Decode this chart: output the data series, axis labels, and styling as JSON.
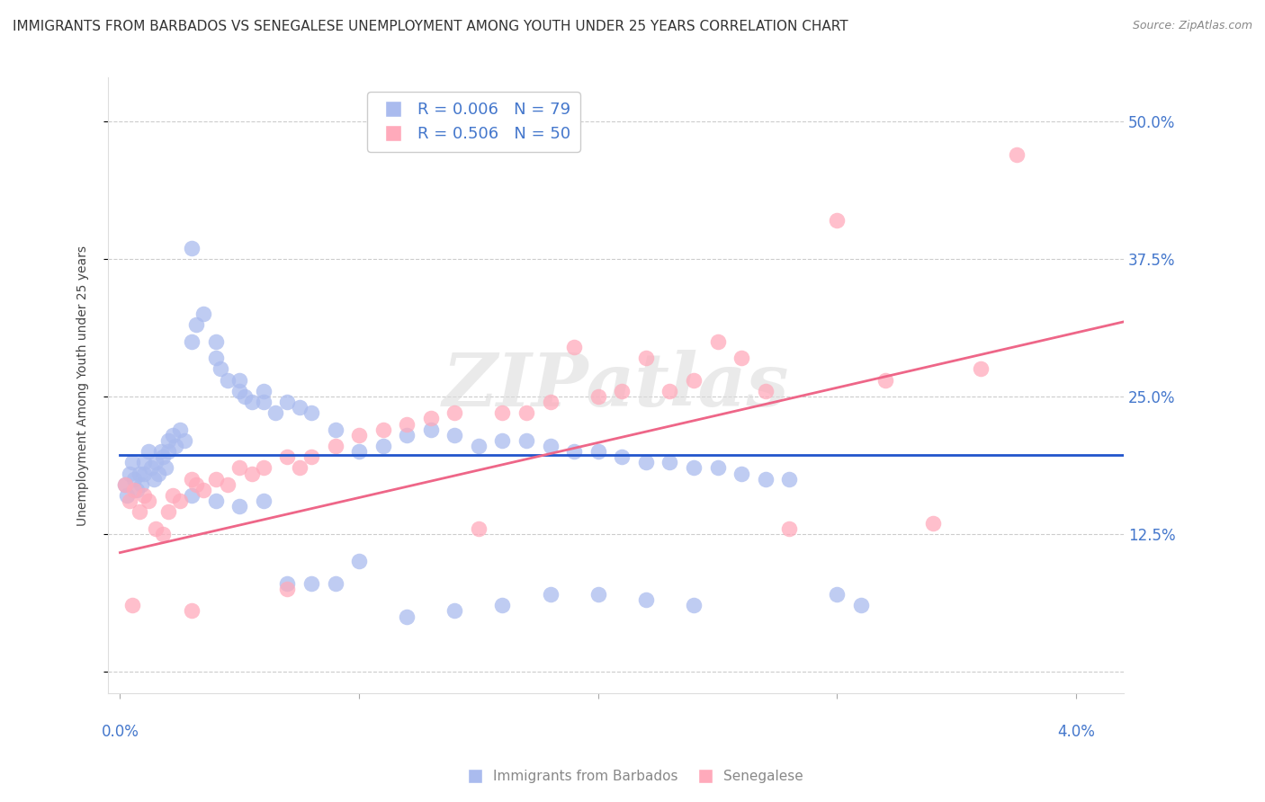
{
  "title": "IMMIGRANTS FROM BARBADOS VS SENEGALESE UNEMPLOYMENT AMONG YOUTH UNDER 25 YEARS CORRELATION CHART",
  "source": "Source: ZipAtlas.com",
  "ylabel": "Unemployment Among Youth under 25 years",
  "yticks": [
    0.0,
    0.125,
    0.25,
    0.375,
    0.5
  ],
  "ytick_labels": [
    "",
    "12.5%",
    "25.0%",
    "37.5%",
    "50.0%"
  ],
  "xlim": [
    -0.0005,
    0.042
  ],
  "ylim": [
    -0.02,
    0.54
  ],
  "legend1_label": "R = 0.006   N = 79",
  "legend2_label": "R = 0.506   N = 50",
  "background_color": "#ffffff",
  "watermark": "ZIPatlas",
  "blue_scatter_x": [
    0.0002,
    0.0003,
    0.0004,
    0.0005,
    0.0006,
    0.0007,
    0.0008,
    0.0009,
    0.001,
    0.001,
    0.0012,
    0.0013,
    0.0014,
    0.0015,
    0.0016,
    0.0017,
    0.0018,
    0.0019,
    0.002,
    0.002,
    0.0022,
    0.0023,
    0.0025,
    0.0027,
    0.003,
    0.003,
    0.0032,
    0.0035,
    0.004,
    0.004,
    0.0042,
    0.0045,
    0.005,
    0.005,
    0.0052,
    0.0055,
    0.006,
    0.006,
    0.0065,
    0.007,
    0.0075,
    0.008,
    0.009,
    0.01,
    0.011,
    0.012,
    0.013,
    0.014,
    0.015,
    0.016,
    0.017,
    0.018,
    0.019,
    0.02,
    0.021,
    0.022,
    0.023,
    0.024,
    0.025,
    0.026,
    0.027,
    0.028,
    0.003,
    0.004,
    0.005,
    0.006,
    0.007,
    0.008,
    0.009,
    0.01,
    0.012,
    0.014,
    0.016,
    0.018,
    0.02,
    0.022,
    0.024,
    0.03,
    0.031
  ],
  "blue_scatter_y": [
    0.17,
    0.16,
    0.18,
    0.19,
    0.175,
    0.165,
    0.18,
    0.17,
    0.19,
    0.18,
    0.2,
    0.185,
    0.175,
    0.19,
    0.18,
    0.2,
    0.195,
    0.185,
    0.21,
    0.2,
    0.215,
    0.205,
    0.22,
    0.21,
    0.385,
    0.3,
    0.315,
    0.325,
    0.3,
    0.285,
    0.275,
    0.265,
    0.265,
    0.255,
    0.25,
    0.245,
    0.255,
    0.245,
    0.235,
    0.245,
    0.24,
    0.235,
    0.22,
    0.2,
    0.205,
    0.215,
    0.22,
    0.215,
    0.205,
    0.21,
    0.21,
    0.205,
    0.2,
    0.2,
    0.195,
    0.19,
    0.19,
    0.185,
    0.185,
    0.18,
    0.175,
    0.175,
    0.16,
    0.155,
    0.15,
    0.155,
    0.08,
    0.08,
    0.08,
    0.1,
    0.05,
    0.055,
    0.06,
    0.07,
    0.07,
    0.065,
    0.06,
    0.07,
    0.06
  ],
  "pink_scatter_x": [
    0.0002,
    0.0004,
    0.0006,
    0.0008,
    0.001,
    0.0012,
    0.0015,
    0.0018,
    0.002,
    0.0022,
    0.0025,
    0.003,
    0.0032,
    0.0035,
    0.004,
    0.0045,
    0.005,
    0.0055,
    0.006,
    0.007,
    0.0075,
    0.008,
    0.009,
    0.01,
    0.011,
    0.012,
    0.013,
    0.014,
    0.015,
    0.016,
    0.017,
    0.018,
    0.019,
    0.02,
    0.021,
    0.022,
    0.023,
    0.024,
    0.025,
    0.026,
    0.027,
    0.028,
    0.03,
    0.032,
    0.034,
    0.036,
    0.0005,
    0.003,
    0.007,
    0.0375
  ],
  "pink_scatter_y": [
    0.17,
    0.155,
    0.165,
    0.145,
    0.16,
    0.155,
    0.13,
    0.125,
    0.145,
    0.16,
    0.155,
    0.175,
    0.17,
    0.165,
    0.175,
    0.17,
    0.185,
    0.18,
    0.185,
    0.195,
    0.185,
    0.195,
    0.205,
    0.215,
    0.22,
    0.225,
    0.23,
    0.235,
    0.13,
    0.235,
    0.235,
    0.245,
    0.295,
    0.25,
    0.255,
    0.285,
    0.255,
    0.265,
    0.3,
    0.285,
    0.255,
    0.13,
    0.41,
    0.265,
    0.135,
    0.275,
    0.06,
    0.055,
    0.075,
    0.47
  ],
  "blue_line_x": [
    0.0,
    0.042
  ],
  "blue_line_y": [
    0.197,
    0.197
  ],
  "pink_line_x": [
    0.0,
    0.042
  ],
  "pink_line_y": [
    0.108,
    0.318
  ],
  "blue_line_color": "#2255cc",
  "pink_line_color": "#ee6688",
  "blue_scatter_color": "#aabbee",
  "pink_scatter_color": "#ffaabb",
  "grid_color": "#cccccc",
  "right_axis_color": "#4477cc",
  "bottom_label_color": "#888888"
}
